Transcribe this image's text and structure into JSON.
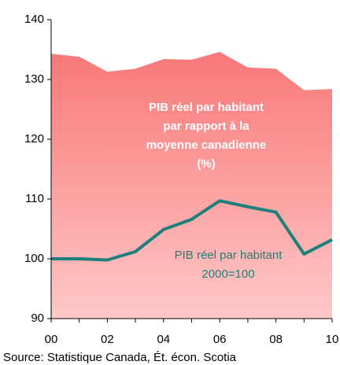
{
  "chart_data": {
    "type": "line",
    "categories": [
      "00",
      null,
      "02",
      null,
      "04",
      null,
      "06",
      null,
      "08",
      null,
      "10"
    ],
    "series": [
      {
        "name": "PIB réel par habitant par rapport à la moyenne canadienne (%)",
        "style": "area",
        "color": "#f87878",
        "color2": "#ffc8c8",
        "values": [
          134.3,
          133.8,
          131.3,
          131.8,
          133.4,
          133.3,
          134.6,
          132,
          131.8,
          128.2,
          128.4
        ]
      },
      {
        "name": "PIB réel par habitant 2000=100",
        "style": "line",
        "color": "#1f7f7a",
        "values": [
          100,
          100,
          99.8,
          101.2,
          104.9,
          106.6,
          109.7,
          108.7,
          107.8,
          100.8,
          103.2
        ]
      }
    ],
    "annotations": [
      [
        "PIB réel par habitant",
        "par rapport à la",
        "moyenne canadienne",
        "(%)"
      ],
      [
        "PIB réel par habitant",
        "2000=100"
      ]
    ],
    "ylim": [
      90,
      140
    ],
    "yticks": [
      90,
      100,
      110,
      120,
      130,
      140
    ],
    "source": "Source: Statistique Canada, Ét. écon. Scotia"
  }
}
